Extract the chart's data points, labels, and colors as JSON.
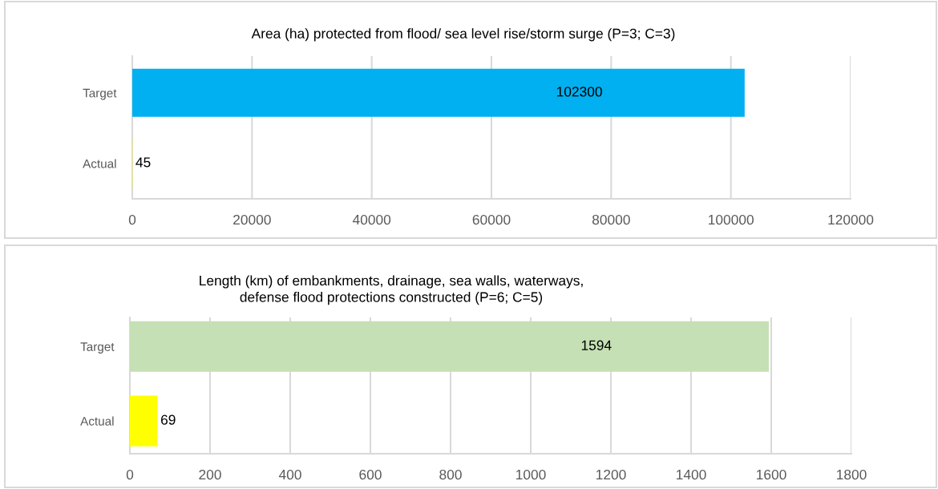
{
  "chart_data": [
    {
      "type": "bar",
      "orientation": "horizontal",
      "title": "Area (ha) protected from flood/ sea level rise/storm surge (P=3; C=3)",
      "categories": [
        "Target",
        "Actual"
      ],
      "values": [
        102300,
        45
      ],
      "colors": [
        "#00b0f0",
        "#ffff00"
      ],
      "xlim": [
        0,
        120000
      ],
      "xticks": [
        0,
        20000,
        40000,
        60000,
        80000,
        100000,
        120000
      ],
      "grid": "x",
      "data_labels": true
    },
    {
      "type": "bar",
      "orientation": "horizontal",
      "title": "Length (km) of embankments, drainage, sea walls, waterways,\ndefense flood protections constructed (P=6; C=5)",
      "categories": [
        "Target",
        "Actual"
      ],
      "values": [
        1594,
        69
      ],
      "colors": [
        "#c5e0b4",
        "#ffff00"
      ],
      "xlim": [
        0,
        1800
      ],
      "xticks": [
        0,
        200,
        400,
        600,
        800,
        1000,
        1200,
        1400,
        1600,
        1800
      ],
      "grid": "x",
      "data_labels": true
    }
  ]
}
